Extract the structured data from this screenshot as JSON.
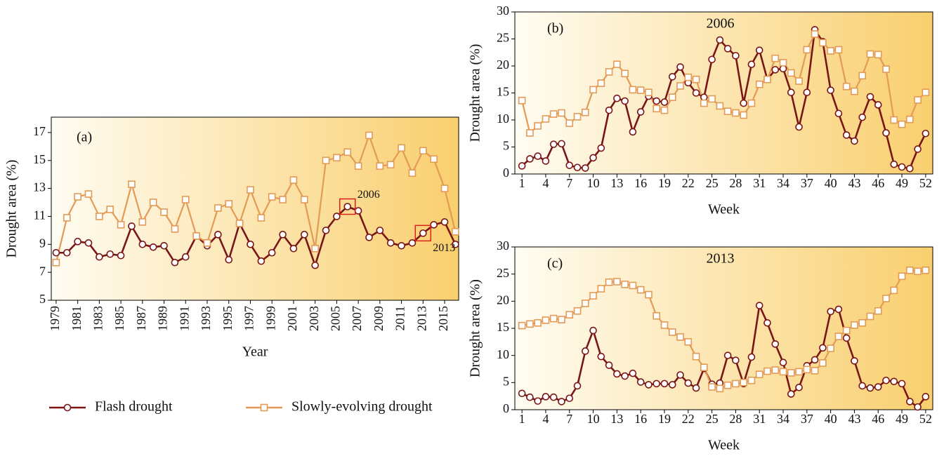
{
  "chart_data": [
    {
      "type": "line",
      "panel_label": "(a)",
      "xlabel": "Year",
      "ylabel": "Drought area (%)",
      "x": [
        1979,
        1980,
        1981,
        1982,
        1983,
        1984,
        1985,
        1986,
        1987,
        1988,
        1989,
        1990,
        1991,
        1992,
        1993,
        1994,
        1995,
        1996,
        1997,
        1998,
        1999,
        2000,
        2001,
        2002,
        2003,
        2004,
        2005,
        2006,
        2007,
        2008,
        2009,
        2010,
        2011,
        2012,
        2013,
        2014,
        2015,
        2016
      ],
      "xlim": [
        1978.55,
        2016.3
      ],
      "xticks": [
        1979,
        1981,
        1983,
        1985,
        1987,
        1989,
        1991,
        1993,
        1995,
        1997,
        1999,
        2001,
        2003,
        2005,
        2007,
        2009,
        2011,
        2013,
        2015
      ],
      "ylim": [
        5,
        18.1
      ],
      "yticks": [
        5,
        7,
        9,
        11,
        13,
        15,
        17
      ],
      "series": [
        {
          "name": "Flash drought",
          "color": "#7a1517",
          "marker": "circle",
          "values": [
            8.4,
            8.4,
            9.2,
            9.1,
            8.1,
            8.3,
            8.2,
            10.3,
            9.0,
            8.8,
            8.9,
            7.7,
            8.1,
            9.6,
            8.9,
            9.7,
            7.9,
            10.5,
            9.0,
            7.8,
            8.4,
            9.7,
            8.7,
            9.7,
            7.5,
            10.0,
            11.0,
            11.7,
            11.4,
            9.5,
            10.0,
            9.1,
            8.9,
            9.1,
            9.8,
            10.4,
            10.6,
            9.0
          ]
        },
        {
          "name": "Slowly-evolving drought",
          "color": "#e39a55",
          "marker": "square",
          "values": [
            7.7,
            10.9,
            12.4,
            12.6,
            11.0,
            11.5,
            10.4,
            13.3,
            10.6,
            12.0,
            11.3,
            10.1,
            12.2,
            9.6,
            9.1,
            11.6,
            11.9,
            10.5,
            12.9,
            10.9,
            12.4,
            12.2,
            13.6,
            12.2,
            8.7,
            15.0,
            15.2,
            15.6,
            14.6,
            16.8,
            14.6,
            14.7,
            15.9,
            14.1,
            15.7,
            15.1,
            13.0,
            9.9
          ]
        }
      ],
      "annotations": [
        {
          "x": 2006,
          "text": "2006"
        },
        {
          "x": 2013,
          "text": "2013"
        }
      ],
      "annotation_color": "#d9201c",
      "background": [
        "#fffcf2",
        "#f9cf6e"
      ]
    },
    {
      "type": "line",
      "panel_label": "(b)",
      "title": "2006",
      "xlabel": "Week",
      "ylabel": "Drought area (%)",
      "x": [
        1,
        2,
        3,
        4,
        5,
        6,
        7,
        8,
        9,
        10,
        11,
        12,
        13,
        14,
        15,
        16,
        17,
        18,
        19,
        20,
        21,
        22,
        23,
        24,
        25,
        26,
        27,
        28,
        29,
        30,
        31,
        32,
        33,
        34,
        35,
        36,
        37,
        38,
        39,
        40,
        41,
        42,
        43,
        44,
        45,
        46,
        47,
        48,
        49,
        50,
        51,
        52
      ],
      "xlim": [
        0.1,
        52.9
      ],
      "xticks": [
        1,
        4,
        7,
        10,
        13,
        16,
        19,
        22,
        25,
        28,
        31,
        34,
        37,
        40,
        43,
        46,
        49,
        52
      ],
      "ylim": [
        0,
        30
      ],
      "yticks": [
        0,
        5,
        10,
        15,
        20,
        25,
        30
      ],
      "series": [
        {
          "color": "#7a1517",
          "marker": "circle",
          "values": [
            1.5,
            2.8,
            3.3,
            2.4,
            5.5,
            5.6,
            1.6,
            1.2,
            1.1,
            3.0,
            4.8,
            11.8,
            14.0,
            13.5,
            7.8,
            11.5,
            14.4,
            13.5,
            13.3,
            18.0,
            19.8,
            16.9,
            15.0,
            14.2,
            21.2,
            24.8,
            23.2,
            21.9,
            13.1,
            20.3,
            22.9,
            17.5,
            19.3,
            19.5,
            15.1,
            8.7,
            15.1,
            26.7,
            24.5,
            15.5,
            11.2,
            7.2,
            6.1,
            10.5,
            14.3,
            12.8,
            7.6,
            1.8,
            1.3,
            1.0,
            4.6,
            7.5
          ]
        },
        {
          "color": "#e39a55",
          "marker": "square",
          "values": [
            13.6,
            7.6,
            8.9,
            10.2,
            11.1,
            11.3,
            9.4,
            10.6,
            11.4,
            15.6,
            16.8,
            18.9,
            20.3,
            18.6,
            15.6,
            15.5,
            15.1,
            12.1,
            11.8,
            14.2,
            16.3,
            17.9,
            17.5,
            13.1,
            13.9,
            12.6,
            11.6,
            11.3,
            10.9,
            13.1,
            16.6,
            17.5,
            21.4,
            20.6,
            18.7,
            17.2,
            23.0,
            25.9,
            24.3,
            22.8,
            23.0,
            16.2,
            15.3,
            18.2,
            22.2,
            22.1,
            19.4,
            10.0,
            9.2,
            10.1,
            13.7,
            15.1
          ]
        }
      ],
      "background": [
        "#fffcf2",
        "#f9cf6e"
      ]
    },
    {
      "type": "line",
      "panel_label": "(c)",
      "title": "2013",
      "xlabel": "Week",
      "ylabel": "Drought area (%)",
      "x": [
        1,
        2,
        3,
        4,
        5,
        6,
        7,
        8,
        9,
        10,
        11,
        12,
        13,
        14,
        15,
        16,
        17,
        18,
        19,
        20,
        21,
        22,
        23,
        24,
        25,
        26,
        27,
        28,
        29,
        30,
        31,
        32,
        33,
        34,
        35,
        36,
        37,
        38,
        39,
        40,
        41,
        42,
        43,
        44,
        45,
        46,
        47,
        48,
        49,
        50,
        51,
        52
      ],
      "xlim": [
        0.1,
        52.9
      ],
      "xticks": [
        1,
        4,
        7,
        10,
        13,
        16,
        19,
        22,
        25,
        28,
        31,
        34,
        37,
        40,
        43,
        46,
        49,
        52
      ],
      "ylim": [
        0,
        30
      ],
      "yticks": [
        0,
        5,
        10,
        15,
        20,
        25,
        30
      ],
      "series": [
        {
          "color": "#7a1517",
          "marker": "circle",
          "values": [
            3.0,
            2.3,
            1.6,
            2.4,
            2.3,
            1.5,
            2.1,
            4.4,
            10.8,
            14.6,
            9.8,
            8.2,
            6.6,
            6.2,
            6.7,
            5.1,
            4.6,
            4.8,
            4.8,
            4.6,
            6.4,
            4.9,
            4.0,
            7.6,
            4.7,
            4.9,
            10.0,
            9.1,
            4.8,
            9.7,
            19.2,
            16.0,
            12.1,
            8.7,
            2.9,
            4.1,
            8.1,
            9.2,
            11.4,
            18.1,
            18.5,
            13.2,
            9.0,
            4.4,
            4.0,
            4.2,
            5.4,
            5.2,
            4.8,
            1.5,
            0.5,
            2.4
          ]
        },
        {
          "color": "#e39a55",
          "marker": "square",
          "values": [
            15.5,
            15.8,
            16.0,
            16.5,
            16.8,
            16.6,
            17.5,
            18.2,
            19.6,
            21.0,
            22.3,
            23.5,
            23.6,
            23.1,
            22.9,
            22.1,
            21.2,
            17.3,
            15.6,
            14.3,
            13.4,
            12.5,
            9.8,
            7.8,
            4.2,
            3.9,
            4.5,
            4.8,
            5.0,
            5.4,
            6.5,
            7.1,
            7.3,
            7.0,
            6.8,
            7.0,
            7.4,
            7.2,
            8.6,
            11.3,
            13.5,
            14.6,
            15.6,
            16.0,
            17.2,
            18.2,
            20.5,
            22.0,
            24.6,
            25.7,
            25.5,
            25.7
          ]
        }
      ],
      "background": [
        "#fffcf2",
        "#f9cf6e"
      ]
    }
  ]
}
